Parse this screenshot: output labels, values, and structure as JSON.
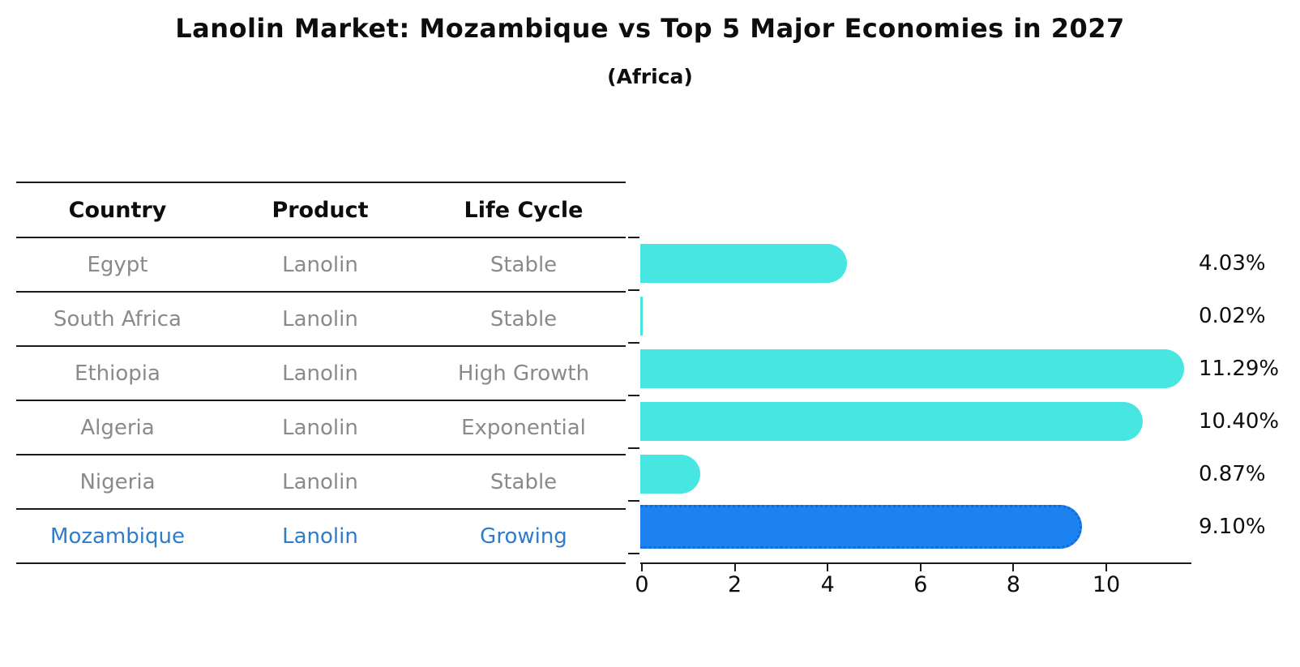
{
  "chart_data": {
    "type": "bar",
    "orientation": "horizontal",
    "title": "Lanolin Market: Mozambique vs Top 5 Major Economies in 2027",
    "subtitle": "(Africa)",
    "categories": [
      "Egypt",
      "South Africa",
      "Ethiopia",
      "Algeria",
      "Nigeria",
      "Mozambique"
    ],
    "values": [
      4.03,
      0.02,
      11.29,
      10.4,
      0.87,
      9.1
    ],
    "value_labels": [
      "4.03%",
      "0.02%",
      "11.29%",
      "10.40%",
      "0.87%",
      "9.10%"
    ],
    "highlight_index": 5,
    "x_ticks": [
      "0",
      "2",
      "4",
      "6",
      "8",
      "10"
    ],
    "x_tick_values": [
      0,
      2,
      4,
      6,
      8,
      10
    ],
    "xlim": [
      0,
      11.8
    ],
    "grid": false,
    "legend": false,
    "bar_color": "#47e6e1",
    "highlight_bar_color": "#1b82f0",
    "highlight_text_color": "#2e7ccb"
  },
  "table": {
    "headers": [
      "Country",
      "Product",
      "Life Cycle"
    ],
    "rows": [
      {
        "country": "Egypt",
        "product": "Lanolin",
        "life_cycle": "Stable"
      },
      {
        "country": "South Africa",
        "product": "Lanolin",
        "life_cycle": "Stable"
      },
      {
        "country": "Ethiopia",
        "product": "Lanolin",
        "life_cycle": "High Growth"
      },
      {
        "country": "Algeria",
        "product": "Lanolin",
        "life_cycle": "Exponential"
      },
      {
        "country": "Nigeria",
        "product": "Lanolin",
        "life_cycle": "Stable"
      },
      {
        "country": "Mozambique",
        "product": "Lanolin",
        "life_cycle": "Growing"
      }
    ]
  }
}
